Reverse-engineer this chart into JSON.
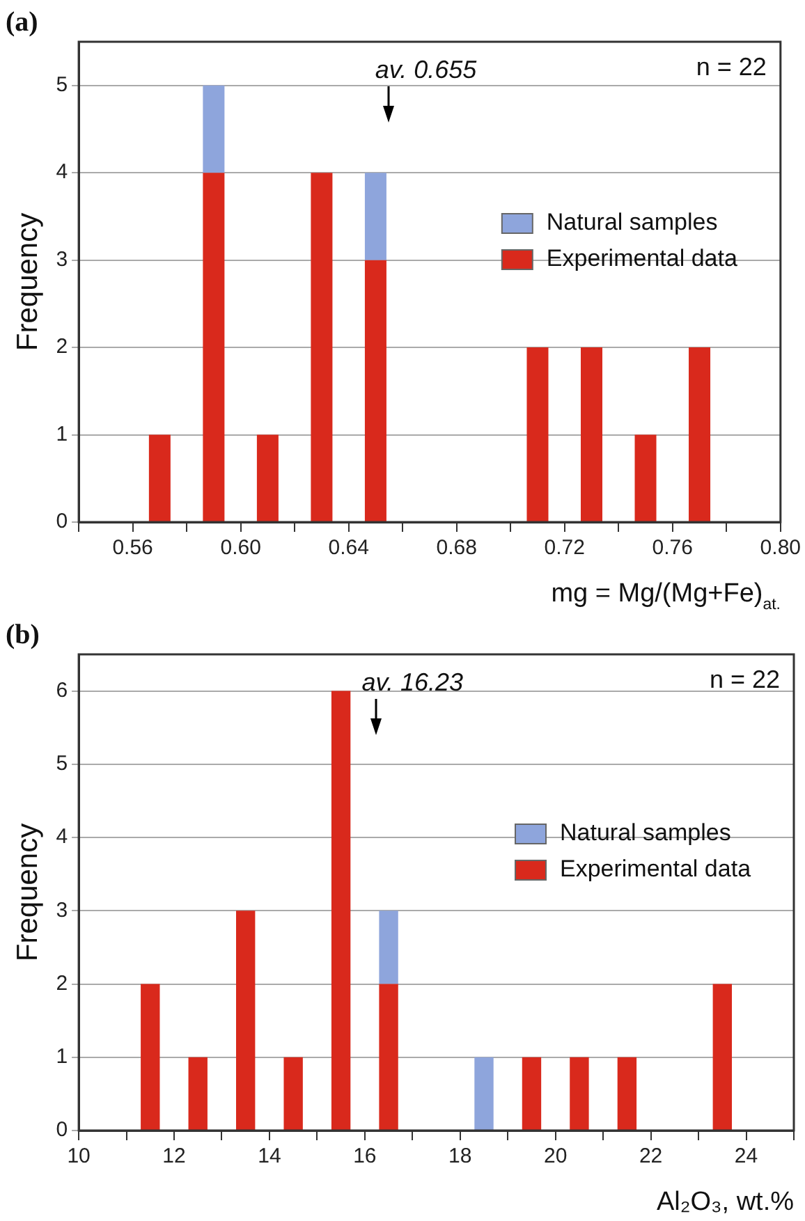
{
  "chart_data": [
    {
      "type": "bar",
      "title": "(a)",
      "xlabel": "mg = Mg/(Mg+Fe)$_{at.}$",
      "ylabel": "Frequency",
      "x": [
        0.57,
        0.59,
        0.61,
        0.63,
        0.65,
        0.71,
        0.73,
        0.75,
        0.77
      ],
      "series": [
        {
          "name": "Experimental data",
          "color": "#d9291c",
          "values": [
            1,
            4,
            1,
            4,
            3,
            2,
            2,
            1,
            2
          ]
        },
        {
          "name": "Natural samples",
          "color": "#8ea5dc",
          "values": [
            null,
            1,
            null,
            null,
            1,
            null,
            null,
            null,
            null
          ]
        }
      ],
      "stacked": true,
      "xlim": [
        0.54,
        0.8
      ],
      "xticks": [
        {
          "value": 0.54,
          "label": null
        },
        0.56,
        {
          "value": 0.58,
          "label": null
        },
        "0.60",
        {
          "value": 0.62,
          "label": null
        },
        0.64,
        {
          "value": 0.66,
          "label": null
        },
        0.68,
        {
          "value": 0.7,
          "label": null
        },
        0.72,
        {
          "value": 0.74,
          "label": null
        },
        0.76,
        {
          "value": 0.78,
          "label": null
        },
        {
          "value": 0.8,
          "label": "0.80"
        }
      ],
      "ylim": [
        0,
        5.5
      ],
      "yticks": [
        0,
        1,
        2,
        3,
        4,
        5
      ],
      "grid": "y",
      "legend": "right",
      "ref_lines": [
        {
          "axis": "x",
          "value": 0.655,
          "label": "av. 0.655"
        }
      ],
      "annotations": [
        "n = 22"
      ]
    },
    {
      "type": "bar",
      "title": "(b)",
      "xlabel": "Al₂O₃, wt.%",
      "ylabel": "Frequency",
      "x": [
        11.5,
        12.5,
        13.5,
        14.5,
        15.5,
        16.5,
        18.5,
        19.5,
        20.5,
        21.5,
        23.5
      ],
      "series": [
        {
          "name": "Experimental data",
          "color": "#d9291c",
          "values": [
            2,
            1,
            3,
            1,
            6,
            2,
            null,
            1,
            1,
            1,
            2
          ]
        },
        {
          "name": "Natural samples",
          "color": "#8ea5dc",
          "values": [
            null,
            null,
            null,
            null,
            null,
            1,
            1,
            null,
            null,
            null,
            null
          ]
        }
      ],
      "stacked": true,
      "xlim": [
        10,
        25
      ],
      "xticks": [
        10,
        {
          "value": 11,
          "label": null
        },
        12,
        {
          "value": 13,
          "label": null
        },
        14,
        {
          "value": 15,
          "label": null
        },
        16,
        {
          "value": 17,
          "label": null
        },
        18,
        {
          "value": 19,
          "label": null
        },
        20,
        {
          "value": 21,
          "label": null
        },
        22,
        {
          "value": 23,
          "label": null
        },
        24,
        {
          "value": 25,
          "label": null
        }
      ],
      "ylim": [
        0,
        6.5
      ],
      "yticks": [
        0,
        1,
        2,
        3,
        4,
        5,
        6
      ],
      "grid": "y",
      "legend": "right",
      "ref_lines": [
        {
          "axis": "x",
          "value": 16.23,
          "label": "av. 16.23"
        }
      ],
      "annotations": [
        "n = 22"
      ]
    }
  ]
}
